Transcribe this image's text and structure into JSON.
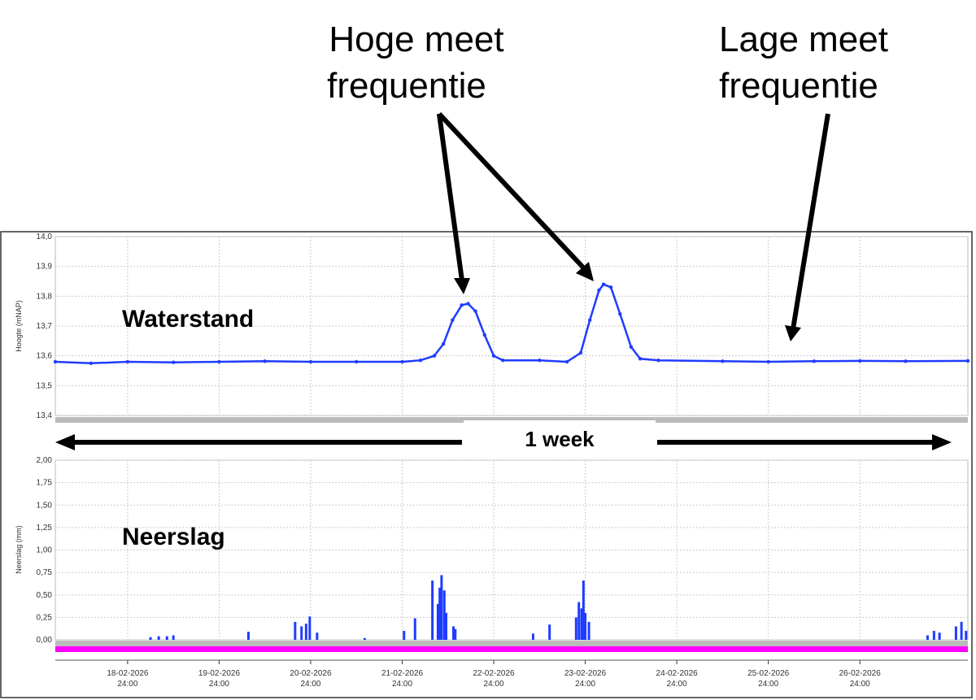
{
  "annotations": {
    "high_frequency": [
      "Hoge meet",
      "frequentie"
    ],
    "low_frequency": [
      "Lage meet",
      "frequentie"
    ],
    "week": "1 week"
  },
  "chart_data": [
    {
      "type": "line",
      "label": "Waterstand",
      "ylabel": "Hoogte (mNAP)",
      "color": "#1f3cff",
      "grid": true,
      "xlim": [
        18.21,
        28.18
      ],
      "xticks": [
        19,
        20,
        21,
        22,
        23,
        24,
        25,
        26,
        27
      ],
      "ylim": [
        13.4,
        14.0
      ],
      "yticks": [
        {
          "value": 13.4,
          "label": "13,4"
        },
        {
          "value": 13.5,
          "label": "13,5"
        },
        {
          "value": 13.6,
          "label": "13,6"
        },
        {
          "value": 13.7,
          "label": "13,7"
        },
        {
          "value": 13.8,
          "label": "13,8"
        },
        {
          "value": 13.9,
          "label": "13,9"
        },
        {
          "value": 14.0,
          "label": "14,0"
        }
      ],
      "x": [
        18.21,
        18.6,
        19.0,
        19.5,
        20.0,
        20.5,
        21.0,
        21.5,
        22.0,
        22.2,
        22.35,
        22.45,
        22.55,
        22.65,
        22.72,
        22.8,
        22.9,
        23.0,
        23.1,
        23.5,
        23.8,
        23.95,
        24.05,
        24.15,
        24.2,
        24.28,
        24.38,
        24.5,
        24.6,
        24.8,
        25.5,
        26.0,
        26.5,
        27.0,
        27.5,
        28.18
      ],
      "values": [
        13.58,
        13.575,
        13.58,
        13.578,
        13.58,
        13.582,
        13.58,
        13.58,
        13.58,
        13.585,
        13.6,
        13.64,
        13.72,
        13.77,
        13.775,
        13.75,
        13.67,
        13.6,
        13.585,
        13.585,
        13.58,
        13.61,
        13.72,
        13.82,
        13.84,
        13.83,
        13.74,
        13.63,
        13.59,
        13.585,
        13.582,
        13.58,
        13.582,
        13.583,
        13.582,
        13.583
      ]
    },
    {
      "type": "bar",
      "label": "Neerslag",
      "ylabel": "Neerslag (mm)",
      "color": "#1f3cff",
      "grid": true,
      "xlim": [
        18.21,
        28.18
      ],
      "xticks": [
        {
          "value": 19,
          "label": "18-02-2026",
          "time": "24:00"
        },
        {
          "value": 20,
          "label": "19-02-2026",
          "time": "24:00"
        },
        {
          "value": 21,
          "label": "20-02-2026",
          "time": "24:00"
        },
        {
          "value": 22,
          "label": "21-02-2026",
          "time": "24:00"
        },
        {
          "value": 23,
          "label": "22-02-2026",
          "time": "24:00"
        },
        {
          "value": 24,
          "label": "23-02-2026",
          "time": "24:00"
        },
        {
          "value": 25,
          "label": "24-02-2026",
          "time": "24:00"
        },
        {
          "value": 26,
          "label": "25-02-2026",
          "time": "24:00"
        },
        {
          "value": 27,
          "label": "26-02-2026",
          "time": "24:00"
        }
      ],
      "ylim": [
        0,
        2
      ],
      "yticks": [
        {
          "value": 0,
          "label": "0,00"
        },
        {
          "value": 0.25,
          "label": "0,25"
        },
        {
          "value": 0.5,
          "label": "0,50"
        },
        {
          "value": 0.75,
          "label": "0,75"
        },
        {
          "value": 1,
          "label": "1,00"
        },
        {
          "value": 1.25,
          "label": "1,25"
        },
        {
          "value": 1.5,
          "label": "1,50"
        },
        {
          "value": 1.75,
          "label": "1,75"
        },
        {
          "value": 2,
          "label": "2,00"
        }
      ],
      "x": [
        19.25,
        19.34,
        19.43,
        19.5,
        20.32,
        20.83,
        20.9,
        20.95,
        20.99,
        21.07,
        21.59,
        22.02,
        22.14,
        22.33,
        22.39,
        22.41,
        22.43,
        22.46,
        22.48,
        22.56,
        22.58,
        23.43,
        23.61,
        23.9,
        23.93,
        23.96,
        23.98,
        24.0,
        24.04,
        27.74,
        27.81,
        27.87,
        28.05,
        28.11,
        28.16
      ],
      "values": [
        0.03,
        0.04,
        0.04,
        0.05,
        0.09,
        0.2,
        0.15,
        0.18,
        0.26,
        0.08,
        0.02,
        0.1,
        0.24,
        0.66,
        0.4,
        0.58,
        0.72,
        0.55,
        0.3,
        0.15,
        0.12,
        0.07,
        0.17,
        0.25,
        0.42,
        0.35,
        0.66,
        0.3,
        0.2,
        0.05,
        0.1,
        0.08,
        0.15,
        0.2,
        0.1
      ]
    }
  ]
}
